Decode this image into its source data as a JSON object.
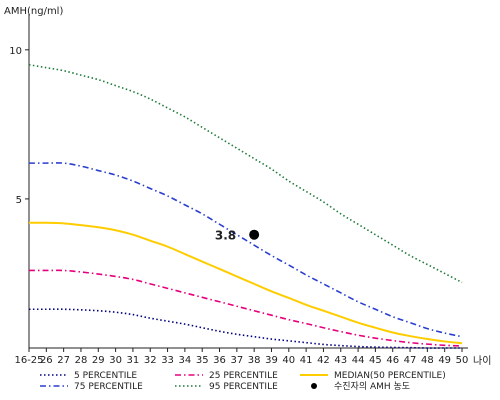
{
  "chart_data": {
    "type": "line",
    "ylabel": "AMH(ng/ml)",
    "xlabel": "나이",
    "categories": [
      "16-25",
      "26",
      "27",
      "28",
      "29",
      "30",
      "31",
      "32",
      "33",
      "34",
      "35",
      "36",
      "37",
      "38",
      "39",
      "40",
      "41",
      "42",
      "43",
      "44",
      "45",
      "46",
      "47",
      "48",
      "49",
      "50"
    ],
    "ylim": [
      0,
      11
    ],
    "yticks": [
      5,
      10
    ],
    "grid": false,
    "series": [
      {
        "name": "5 PERCENTILE",
        "color": "#000080",
        "dash": "dotted",
        "values": [
          1.3,
          1.3,
          1.3,
          1.28,
          1.25,
          1.2,
          1.12,
          1.0,
          0.9,
          0.8,
          0.68,
          0.56,
          0.46,
          0.38,
          0.3,
          0.24,
          0.18,
          0.12,
          0.08,
          0.05,
          0.03,
          0.02,
          0.01,
          0.0,
          0.0,
          0.0
        ]
      },
      {
        "name": "25 PERCENTILE",
        "color": "#e6007e",
        "dash": "dashdot",
        "values": [
          2.6,
          2.6,
          2.6,
          2.55,
          2.48,
          2.4,
          2.3,
          2.15,
          2.0,
          1.85,
          1.7,
          1.55,
          1.4,
          1.25,
          1.1,
          0.95,
          0.82,
          0.68,
          0.55,
          0.43,
          0.33,
          0.25,
          0.18,
          0.13,
          0.09,
          0.07
        ]
      },
      {
        "name": "MEDIAN(50 PERCENTILE)",
        "color": "#ffcc00",
        "dash": "solid",
        "values": [
          4.2,
          4.2,
          4.18,
          4.12,
          4.05,
          3.95,
          3.8,
          3.6,
          3.4,
          3.15,
          2.9,
          2.65,
          2.4,
          2.15,
          1.9,
          1.68,
          1.45,
          1.25,
          1.05,
          0.85,
          0.68,
          0.52,
          0.4,
          0.3,
          0.22,
          0.16
        ]
      },
      {
        "name": "75 PERCENTILE",
        "color": "#2b3fcf",
        "dash": "dashdot",
        "values": [
          6.2,
          6.2,
          6.2,
          6.1,
          5.95,
          5.8,
          5.6,
          5.35,
          5.1,
          4.8,
          4.5,
          4.15,
          3.8,
          3.45,
          3.1,
          2.78,
          2.45,
          2.15,
          1.85,
          1.55,
          1.3,
          1.05,
          0.85,
          0.65,
          0.5,
          0.38
        ]
      },
      {
        "name": "95 PERCENTILE",
        "color": "#1f7a3a",
        "dash": "dotted",
        "values": [
          9.5,
          9.4,
          9.3,
          9.15,
          9.0,
          8.8,
          8.6,
          8.35,
          8.05,
          7.75,
          7.4,
          7.05,
          6.7,
          6.35,
          6.0,
          5.6,
          5.25,
          4.9,
          4.5,
          4.15,
          3.8,
          3.45,
          3.1,
          2.8,
          2.5,
          2.2
        ]
      }
    ],
    "marker": {
      "name": "수진자의 AMH 농도",
      "x": "38",
      "y": 3.8,
      "label": "3.8",
      "color": "#000000"
    },
    "legend": {
      "position": "bottom",
      "columns": 3
    }
  }
}
